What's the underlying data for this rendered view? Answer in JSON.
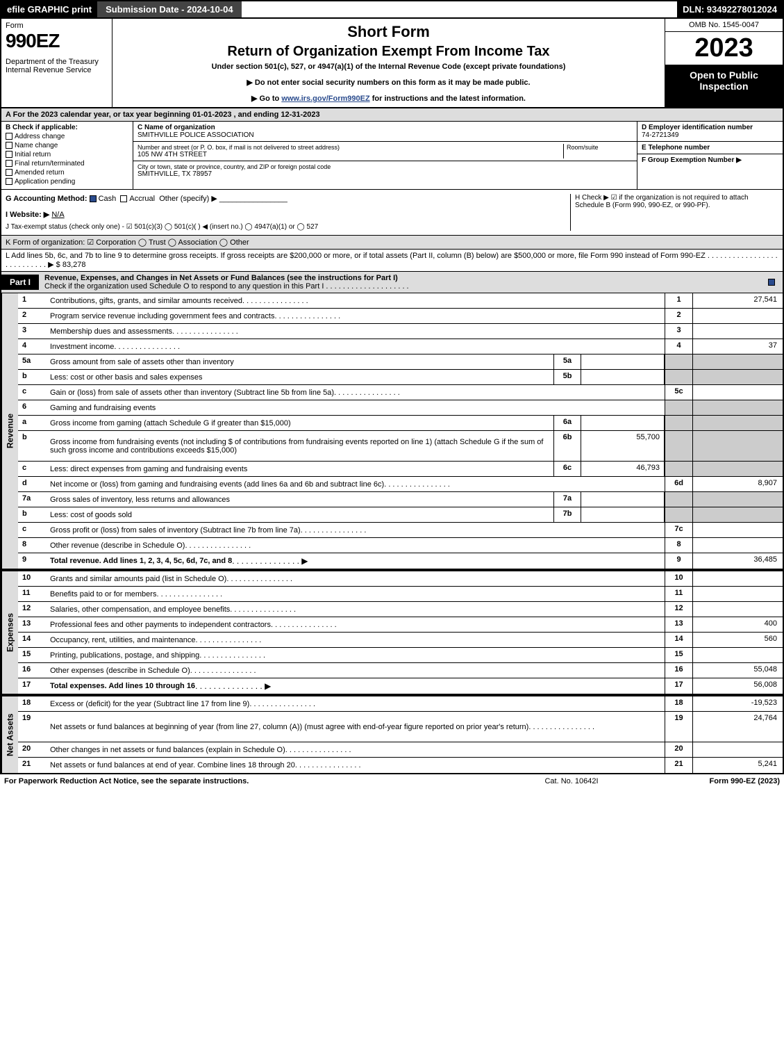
{
  "topbar": {
    "efile": "efile GRAPHIC print",
    "submission": "Submission Date - 2024-10-04",
    "dln": "DLN: 93492278012024"
  },
  "header": {
    "form_label": "Form",
    "form_number": "990EZ",
    "dept": "Department of the Treasury\nInternal Revenue Service",
    "title_short": "Short Form",
    "title_main": "Return of Organization Exempt From Income Tax",
    "subtitle": "Under section 501(c), 527, or 4947(a)(1) of the Internal Revenue Code (except private foundations)",
    "inst1": "▶ Do not enter social security numbers on this form as it may be made public.",
    "inst2_pre": "▶ Go to ",
    "inst2_link": "www.irs.gov/Form990EZ",
    "inst2_post": " for instructions and the latest information.",
    "omb": "OMB No. 1545-0047",
    "year": "2023",
    "inspection": "Open to Public Inspection"
  },
  "section_a": "A  For the 2023 calendar year, or tax year beginning 01-01-2023 , and ending 12-31-2023",
  "section_b": {
    "title": "B  Check if applicable:",
    "opts": [
      "Address change",
      "Name change",
      "Initial return",
      "Final return/terminated",
      "Amended return",
      "Application pending"
    ]
  },
  "section_c": {
    "name_label": "C Name of organization",
    "name_val": "SMITHVILLE POLICE ASSOCIATION",
    "addr_label": "Number and street (or P. O. box, if mail is not delivered to street address)",
    "room_label": "Room/suite",
    "addr_val": "105 NW 4TH STREET",
    "city_label": "City or town, state or province, country, and ZIP or foreign postal code",
    "city_val": "SMITHVILLE, TX  78957"
  },
  "section_d": {
    "label": "D Employer identification number",
    "val": "74-2721349"
  },
  "section_e": {
    "label": "E Telephone number",
    "val": ""
  },
  "section_f": {
    "label": "F Group Exemption Number   ▶",
    "val": ""
  },
  "section_g": {
    "label": "G Accounting Method:",
    "cash": "Cash",
    "accrual": "Accrual",
    "other": "Other (specify) ▶"
  },
  "section_h": "H  Check ▶ ☑ if the organization is not required to attach Schedule B (Form 990, 990-EZ, or 990-PF).",
  "section_i": {
    "label": "I Website: ▶",
    "val": "N/A"
  },
  "section_j": "J Tax-exempt status (check only one) - ☑ 501(c)(3)  ◯ 501(c)(  ) ◀ (insert no.)  ◯ 4947(a)(1) or  ◯ 527",
  "section_k": "K Form of organization:  ☑ Corporation   ◯ Trust   ◯ Association   ◯ Other",
  "section_l": {
    "text": "L Add lines 5b, 6c, and 7b to line 9 to determine gross receipts. If gross receipts are $200,000 or more, or if total assets (Part II, column (B) below) are $500,000 or more, file Form 990 instead of Form 990-EZ  .  .  .  .  .  .  .  .  .  .  .  .  .  .  .  .  .  .  .  .  .  .  .  .  .  .  .  ▶ $",
    "val": "83,278"
  },
  "part1": {
    "tab": "Part I",
    "title": "Revenue, Expenses, and Changes in Net Assets or Fund Balances (see the instructions for Part I)",
    "check_text": "Check if the organization used Schedule O to respond to any question in this Part I  .  .  .  .  .  .  .  .  .  .  .  .  .  .  .  .  .  .  .  ."
  },
  "revenue": {
    "side": "Revenue",
    "rows": [
      {
        "n": "1",
        "d": "Contributions, gifts, grants, and similar amounts received",
        "rn": "1",
        "v": "27,541"
      },
      {
        "n": "2",
        "d": "Program service revenue including government fees and contracts",
        "rn": "2",
        "v": ""
      },
      {
        "n": "3",
        "d": "Membership dues and assessments",
        "rn": "3",
        "v": ""
      },
      {
        "n": "4",
        "d": "Investment income",
        "rn": "4",
        "v": "37"
      },
      {
        "n": "5a",
        "d": "Gross amount from sale of assets other than inventory",
        "sn": "5a",
        "sv": "",
        "gray": true
      },
      {
        "n": "b",
        "d": "Less: cost or other basis and sales expenses",
        "sn": "5b",
        "sv": "",
        "gray": true
      },
      {
        "n": "c",
        "d": "Gain or (loss) from sale of assets other than inventory (Subtract line 5b from line 5a)",
        "rn": "5c",
        "v": ""
      },
      {
        "n": "6",
        "d": "Gaming and fundraising events",
        "gray": true,
        "noval": true
      },
      {
        "n": "a",
        "d": "Gross income from gaming (attach Schedule G if greater than $15,000)",
        "sn": "6a",
        "sv": "",
        "gray": true
      },
      {
        "n": "b",
        "d": "Gross income from fundraising events (not including $                of contributions from fundraising events reported on line 1) (attach Schedule G if the sum of such gross income and contributions exceeds $15,000)",
        "sn": "6b",
        "sv": "55,700",
        "gray": true,
        "tall": true
      },
      {
        "n": "c",
        "d": "Less: direct expenses from gaming and fundraising events",
        "sn": "6c",
        "sv": "46,793",
        "gray": true
      },
      {
        "n": "d",
        "d": "Net income or (loss) from gaming and fundraising events (add lines 6a and 6b and subtract line 6c)",
        "rn": "6d",
        "v": "8,907"
      },
      {
        "n": "7a",
        "d": "Gross sales of inventory, less returns and allowances",
        "sn": "7a",
        "sv": "",
        "gray": true
      },
      {
        "n": "b",
        "d": "Less: cost of goods sold",
        "sn": "7b",
        "sv": "",
        "gray": true
      },
      {
        "n": "c",
        "d": "Gross profit or (loss) from sales of inventory (Subtract line 7b from line 7a)",
        "rn": "7c",
        "v": ""
      },
      {
        "n": "8",
        "d": "Other revenue (describe in Schedule O)",
        "rn": "8",
        "v": ""
      },
      {
        "n": "9",
        "d": "Total revenue. Add lines 1, 2, 3, 4, 5c, 6d, 7c, and 8",
        "rn": "9",
        "v": "36,485",
        "bold": true,
        "arrow": true
      }
    ]
  },
  "expenses": {
    "side": "Expenses",
    "rows": [
      {
        "n": "10",
        "d": "Grants and similar amounts paid (list in Schedule O)",
        "rn": "10",
        "v": ""
      },
      {
        "n": "11",
        "d": "Benefits paid to or for members",
        "rn": "11",
        "v": ""
      },
      {
        "n": "12",
        "d": "Salaries, other compensation, and employee benefits",
        "rn": "12",
        "v": ""
      },
      {
        "n": "13",
        "d": "Professional fees and other payments to independent contractors",
        "rn": "13",
        "v": "400"
      },
      {
        "n": "14",
        "d": "Occupancy, rent, utilities, and maintenance",
        "rn": "14",
        "v": "560"
      },
      {
        "n": "15",
        "d": "Printing, publications, postage, and shipping",
        "rn": "15",
        "v": ""
      },
      {
        "n": "16",
        "d": "Other expenses (describe in Schedule O)",
        "rn": "16",
        "v": "55,048"
      },
      {
        "n": "17",
        "d": "Total expenses. Add lines 10 through 16",
        "rn": "17",
        "v": "56,008",
        "bold": true,
        "arrow": true
      }
    ]
  },
  "netassets": {
    "side": "Net Assets",
    "rows": [
      {
        "n": "18",
        "d": "Excess or (deficit) for the year (Subtract line 17 from line 9)",
        "rn": "18",
        "v": "-19,523"
      },
      {
        "n": "19",
        "d": "Net assets or fund balances at beginning of year (from line 27, column (A)) (must agree with end-of-year figure reported on prior year's return)",
        "rn": "19",
        "v": "24,764",
        "tall": true
      },
      {
        "n": "20",
        "d": "Other changes in net assets or fund balances (explain in Schedule O)",
        "rn": "20",
        "v": ""
      },
      {
        "n": "21",
        "d": "Net assets or fund balances at end of year. Combine lines 18 through 20",
        "rn": "21",
        "v": "5,241"
      }
    ]
  },
  "footer": {
    "left": "For Paperwork Reduction Act Notice, see the separate instructions.",
    "mid": "Cat. No. 10642I",
    "right": "Form 990-EZ (2023)"
  },
  "colors": {
    "black": "#000000",
    "gray_bg": "#dddddd",
    "gray_cell": "#cccccc",
    "link": "#2a4b8d"
  }
}
